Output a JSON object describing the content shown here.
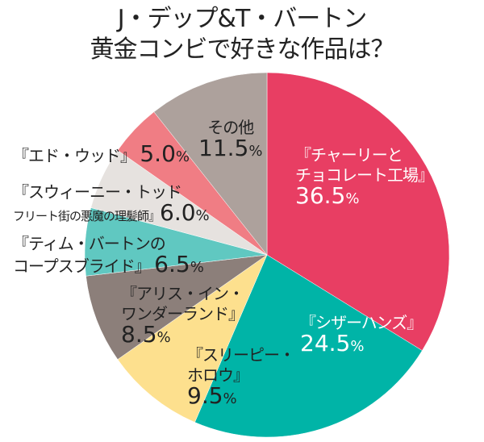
{
  "chart_data": {
    "type": "pie",
    "title": [
      "J・デップ&T・バートン",
      "黄金コンビで好きな作品は？"
    ],
    "start": "top",
    "direction": "clockwise",
    "slices": [
      {
        "label": "『チャーリーとチョコレート工場』",
        "value": 36.5,
        "color": "#e83e63"
      },
      {
        "label": "『シザーハンズ』",
        "value": 24.5,
        "color": "#00b4a7"
      },
      {
        "label": "『スリーピー・ホロウ』",
        "value": 9.5,
        "color": "#fde08e"
      },
      {
        "label": "『アリス・イン・ワンダーランド』",
        "value": 8.5,
        "color": "#8c7f7a"
      },
      {
        "label": "『ティム・バートンのコープスブライド』",
        "value": 6.5,
        "color": "#60c8c1"
      },
      {
        "label": "『スウィーニー・トッド フリート街の悪魔の理髪師』",
        "value": 6.0,
        "color": "#e6e2df"
      },
      {
        "label": "『エド・ウッド』",
        "value": 5.0,
        "color": "#f07d84"
      },
      {
        "label": "その他",
        "value": 11.5,
        "color": "#ada19c"
      }
    ]
  },
  "labels": [
    {
      "lines": [
        "『チャーリーと",
        "チョコレート工場』"
      ],
      "pct": "36.5"
    },
    {
      "lines": [
        "『シザーハンズ』"
      ],
      "pct": "24.5"
    },
    {
      "lines": [
        "『スリーピー・",
        "ホロウ』"
      ],
      "pct": "9.5"
    },
    {
      "lines": [
        "『アリス・イン・",
        "ワンダーランド』"
      ],
      "pct": "8.5"
    },
    {
      "lines": [
        "『ティム・バートンの",
        "コープスブライド』"
      ],
      "pct": "6.5"
    },
    {
      "lines": [
        "『スウィーニー・トッド",
        "フリート街の悪魔の理髪師』"
      ],
      "pct": "6.0"
    },
    {
      "lines": [
        "『エド・ウッド』"
      ],
      "pct": "5.0"
    },
    {
      "lines": [
        "その他"
      ],
      "pct": "11.5"
    }
  ],
  "pct_sign": "%"
}
